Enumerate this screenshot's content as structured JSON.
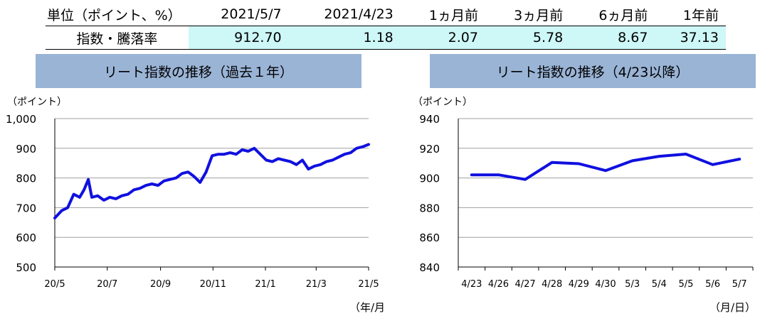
{
  "table": {
    "header": [
      "単位（ポイント、%）",
      "2021/5/7",
      "2021/4/23",
      "1ヵ月前",
      "3ヵ月前",
      "6ヵ月前",
      "1年前"
    ],
    "row_label": "指数・騰落率",
    "row_values": [
      "912.70",
      "1.18",
      "2.07",
      "5.78",
      "8.67",
      "37.13"
    ]
  },
  "chart_data": [
    {
      "type": "line",
      "title": "リート指数の推移（過去１年）",
      "ylabel": "（ポイント）",
      "xlabel": "（年/月）",
      "ylim": [
        500,
        1000
      ],
      "yticks": [
        "500",
        "600",
        "700",
        "800",
        "900",
        "1,000"
      ],
      "xticks": [
        "20/5",
        "20/7",
        "20/9",
        "20/11",
        "21/1",
        "21/3",
        "21/5"
      ],
      "grid": true,
      "color": "#1010e0",
      "series": [
        {
          "x": [
            "2020-05-07",
            "2020-05-15",
            "2020-05-22",
            "2020-05-29",
            "2020-06-05",
            "2020-06-10",
            "2020-06-15",
            "2020-06-19",
            "2020-06-26",
            "2020-07-03",
            "2020-07-10",
            "2020-07-17",
            "2020-07-24",
            "2020-07-31",
            "2020-08-07",
            "2020-08-14",
            "2020-08-21",
            "2020-08-28",
            "2020-09-04",
            "2020-09-11",
            "2020-09-18",
            "2020-09-25",
            "2020-10-02",
            "2020-10-09",
            "2020-10-16",
            "2020-10-23",
            "2020-10-30",
            "2020-11-06",
            "2020-11-13",
            "2020-11-20",
            "2020-11-27",
            "2020-12-04",
            "2020-12-11",
            "2020-12-18",
            "2020-12-25",
            "2021-01-08",
            "2021-01-15",
            "2021-01-22",
            "2021-01-29",
            "2021-02-05",
            "2021-02-12",
            "2021-02-19",
            "2021-02-26",
            "2021-03-05",
            "2021-03-12",
            "2021-03-19",
            "2021-03-26",
            "2021-04-02",
            "2021-04-09",
            "2021-04-16",
            "2021-04-23",
            "2021-04-30",
            "2021-05-07"
          ],
          "values": [
            665,
            690,
            700,
            745,
            735,
            760,
            795,
            735,
            740,
            725,
            735,
            730,
            740,
            745,
            760,
            765,
            775,
            780,
            775,
            790,
            795,
            800,
            815,
            820,
            805,
            785,
            820,
            875,
            880,
            880,
            885,
            880,
            895,
            890,
            900,
            860,
            855,
            865,
            860,
            855,
            845,
            860,
            830,
            840,
            845,
            855,
            860,
            870,
            880,
            885,
            900,
            905,
            913
          ]
        }
      ]
    },
    {
      "type": "line",
      "title": "リート指数の推移（4/23以降）",
      "ylabel": "（ポイント）",
      "xlabel": "（月/日）",
      "ylim": [
        840,
        940
      ],
      "yticks": [
        "840",
        "860",
        "880",
        "900",
        "920",
        "940"
      ],
      "categories": [
        "4/23",
        "4/26",
        "4/27",
        "4/28",
        "4/29",
        "4/30",
        "5/3",
        "5/4",
        "5/5",
        "5/6",
        "5/7"
      ],
      "grid": true,
      "color": "#1010e0",
      "series": [
        {
          "values": [
            902.1,
            902.1,
            899.0,
            910.5,
            909.6,
            905.0,
            911.6,
            914.6,
            916.1,
            909.0,
            912.7
          ]
        }
      ]
    }
  ]
}
